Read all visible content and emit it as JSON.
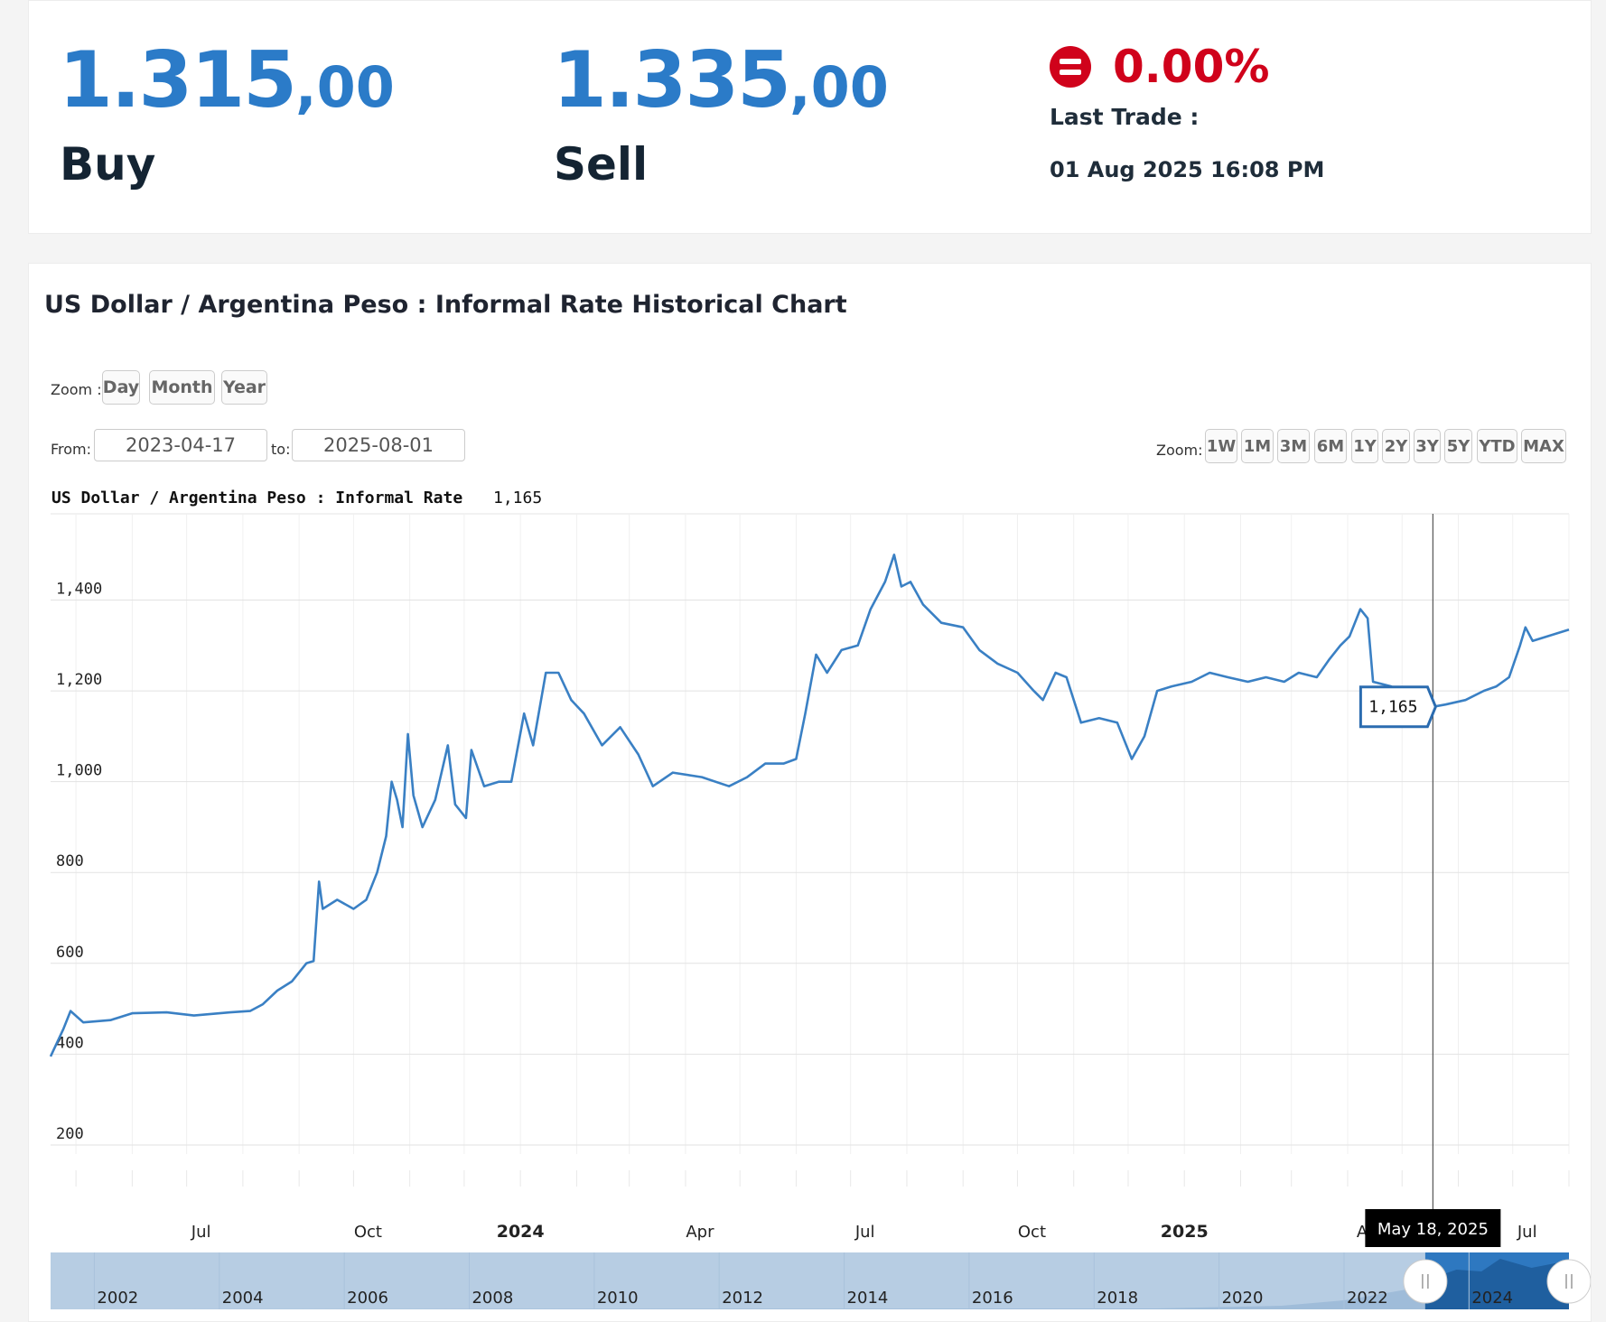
{
  "quote": {
    "buy_int": "1.315",
    "buy_dec": ",00",
    "buy_label": "Buy",
    "sell_int": "1.335",
    "sell_dec": ",00",
    "sell_label": "Sell",
    "change_pct": "0.00%",
    "last_trade_label": "Last Trade :",
    "last_trade_time": "01 Aug 2025 16:08 PM",
    "change_color": "#d0021b",
    "price_color": "#2b7bc8"
  },
  "controls": {
    "zoom_label": "Zoom :",
    "zoom_buttons": [
      "Day",
      "Month",
      "Year"
    ],
    "from_label": "From:",
    "from_value": "2023-04-17",
    "to_label": "to:",
    "to_value": "2025-08-01",
    "range_label": "Zoom:",
    "range_buttons": [
      "1W",
      "1M",
      "3M",
      "6M",
      "1Y",
      "2Y",
      "3Y",
      "5Y",
      "YTD",
      "MAX"
    ]
  },
  "chart_data": {
    "type": "line",
    "title": "US Dollar / Argentina Peso : Informal Rate Historical Chart",
    "series_name": "US Dollar / Argentina Peso : Informal Rate",
    "legend_value": "1,165",
    "line_color": "#3a80c4",
    "y_ticks": [
      "200",
      "400",
      "600",
      "800",
      "1,000",
      "1,200",
      "1,400"
    ],
    "y_tick_values": [
      200,
      400,
      600,
      800,
      1000,
      1200,
      1400
    ],
    "ylim": [
      180,
      1590
    ],
    "x_range": [
      "2023-04-17",
      "2025-08-01"
    ],
    "x_ticks": [
      {
        "label": "Jul",
        "date": "2023-07-01",
        "major": false
      },
      {
        "label": "Oct",
        "date": "2023-10-01",
        "major": false
      },
      {
        "label": "2024",
        "date": "2024-01-01",
        "major": true
      },
      {
        "label": "Apr",
        "date": "2024-04-01",
        "major": false
      },
      {
        "label": "Jul",
        "date": "2024-07-01",
        "major": false
      },
      {
        "label": "Oct",
        "date": "2024-10-01",
        "major": false
      },
      {
        "label": "2025",
        "date": "2025-01-01",
        "major": true
      },
      {
        "label": "A",
        "date": "2025-04-01",
        "major": false
      },
      {
        "label": "Jul",
        "date": "2025-07-01",
        "major": false
      }
    ],
    "crosshair": {
      "date": "May 18, 2025",
      "value": "1,165",
      "date_iso": "2025-05-18"
    },
    "series": [
      {
        "values": [
          [
            "2023-04-17",
            395
          ],
          [
            "2023-04-24",
            455
          ],
          [
            "2023-04-28",
            495
          ],
          [
            "2023-05-05",
            470
          ],
          [
            "2023-05-20",
            475
          ],
          [
            "2023-06-01",
            490
          ],
          [
            "2023-06-20",
            492
          ],
          [
            "2023-07-05",
            485
          ],
          [
            "2023-07-25",
            492
          ],
          [
            "2023-08-05",
            495
          ],
          [
            "2023-08-12",
            510
          ],
          [
            "2023-08-20",
            540
          ],
          [
            "2023-08-28",
            560
          ],
          [
            "2023-09-05",
            600
          ],
          [
            "2023-09-09",
            605
          ],
          [
            "2023-09-12",
            780
          ],
          [
            "2023-09-14",
            720
          ],
          [
            "2023-09-22",
            740
          ],
          [
            "2023-10-01",
            720
          ],
          [
            "2023-10-08",
            740
          ],
          [
            "2023-10-14",
            800
          ],
          [
            "2023-10-19",
            880
          ],
          [
            "2023-10-22",
            1000
          ],
          [
            "2023-10-25",
            960
          ],
          [
            "2023-10-28",
            900
          ],
          [
            "2023-10-31",
            1105
          ],
          [
            "2023-11-03",
            970
          ],
          [
            "2023-11-08",
            900
          ],
          [
            "2023-11-15",
            960
          ],
          [
            "2023-11-22",
            1080
          ],
          [
            "2023-11-26",
            950
          ],
          [
            "2023-12-02",
            920
          ],
          [
            "2023-12-05",
            1070
          ],
          [
            "2023-12-12",
            990
          ],
          [
            "2023-12-20",
            1000
          ],
          [
            "2023-12-27",
            1000
          ],
          [
            "2024-01-03",
            1150
          ],
          [
            "2024-01-08",
            1080
          ],
          [
            "2024-01-15",
            1240
          ],
          [
            "2024-01-22",
            1240
          ],
          [
            "2024-01-29",
            1180
          ],
          [
            "2024-02-05",
            1150
          ],
          [
            "2024-02-15",
            1080
          ],
          [
            "2024-02-25",
            1120
          ],
          [
            "2024-03-06",
            1060
          ],
          [
            "2024-03-14",
            990
          ],
          [
            "2024-03-25",
            1020
          ],
          [
            "2024-04-10",
            1010
          ],
          [
            "2024-04-25",
            990
          ],
          [
            "2024-05-05",
            1010
          ],
          [
            "2024-05-15",
            1040
          ],
          [
            "2024-05-25",
            1040
          ],
          [
            "2024-06-01",
            1050
          ],
          [
            "2024-06-06",
            1150
          ],
          [
            "2024-06-12",
            1280
          ],
          [
            "2024-06-18",
            1240
          ],
          [
            "2024-06-26",
            1290
          ],
          [
            "2024-07-05",
            1300
          ],
          [
            "2024-07-12",
            1380
          ],
          [
            "2024-07-20",
            1440
          ],
          [
            "2024-07-25",
            1500
          ],
          [
            "2024-07-29",
            1430
          ],
          [
            "2024-08-03",
            1440
          ],
          [
            "2024-08-10",
            1390
          ],
          [
            "2024-08-20",
            1350
          ],
          [
            "2024-09-01",
            1340
          ],
          [
            "2024-09-10",
            1290
          ],
          [
            "2024-09-20",
            1260
          ],
          [
            "2024-10-01",
            1240
          ],
          [
            "2024-10-10",
            1200
          ],
          [
            "2024-10-15",
            1180
          ],
          [
            "2024-10-22",
            1240
          ],
          [
            "2024-10-28",
            1230
          ],
          [
            "2024-11-05",
            1130
          ],
          [
            "2024-11-15",
            1140
          ],
          [
            "2024-11-25",
            1130
          ],
          [
            "2024-12-03",
            1050
          ],
          [
            "2024-12-10",
            1100
          ],
          [
            "2024-12-17",
            1200
          ],
          [
            "2024-12-25",
            1210
          ],
          [
            "2025-01-05",
            1220
          ],
          [
            "2025-01-15",
            1240
          ],
          [
            "2025-01-25",
            1230
          ],
          [
            "2025-02-05",
            1220
          ],
          [
            "2025-02-15",
            1230
          ],
          [
            "2025-02-25",
            1220
          ],
          [
            "2025-03-05",
            1240
          ],
          [
            "2025-03-15",
            1230
          ],
          [
            "2025-03-22",
            1270
          ],
          [
            "2025-03-28",
            1300
          ],
          [
            "2025-04-02",
            1320
          ],
          [
            "2025-04-08",
            1380
          ],
          [
            "2025-04-12",
            1360
          ],
          [
            "2025-04-15",
            1220
          ],
          [
            "2025-04-25",
            1210
          ],
          [
            "2025-05-08",
            1170
          ],
          [
            "2025-05-18",
            1165
          ],
          [
            "2025-05-25",
            1170
          ],
          [
            "2025-06-05",
            1180
          ],
          [
            "2025-06-15",
            1200
          ],
          [
            "2025-06-22",
            1210
          ],
          [
            "2025-06-29",
            1230
          ],
          [
            "2025-07-05",
            1300
          ],
          [
            "2025-07-08",
            1340
          ],
          [
            "2025-07-12",
            1310
          ],
          [
            "2025-07-20",
            1320
          ],
          [
            "2025-08-01",
            1335
          ]
        ]
      }
    ],
    "navigator": {
      "x_ticks": [
        "2002",
        "2004",
        "2006",
        "2008",
        "2010",
        "2012",
        "2014",
        "2016",
        "2018",
        "2020",
        "2022",
        "2024"
      ],
      "start_year": 2001.3,
      "end_year": 2025.6
    }
  }
}
